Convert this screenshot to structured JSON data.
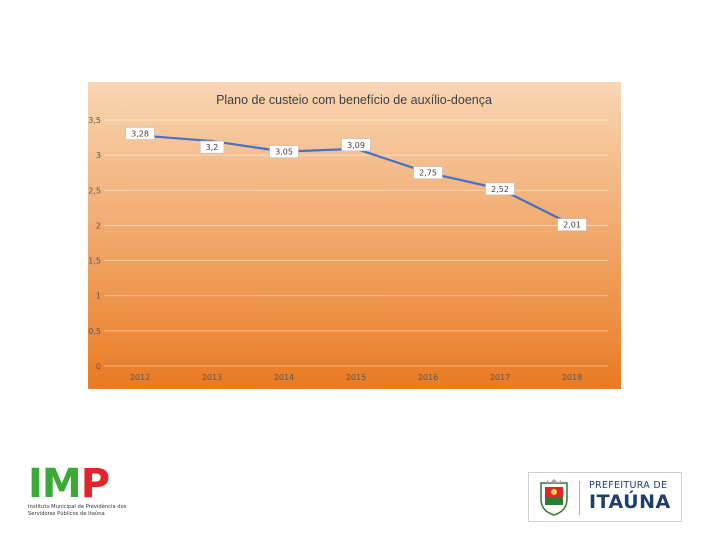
{
  "chart_data": {
    "type": "line",
    "title": "Plano de custeio com benefício de auxílio-doença",
    "categories": [
      "2012",
      "2013",
      "2014",
      "2015",
      "2016",
      "2017",
      "2018"
    ],
    "series": [
      {
        "values": [
          3.28,
          3.2,
          3.05,
          3.09,
          2.75,
          2.52,
          2.01
        ],
        "labels": [
          "3,28",
          "3,2",
          "3,05",
          "3,09",
          "2,75",
          "2,52",
          "2,01"
        ],
        "color": "#4472c4"
      }
    ],
    "ylim": [
      0,
      3.5
    ],
    "yticks": [
      0,
      0.5,
      1,
      1.5,
      2,
      2.5,
      3,
      3.5
    ],
    "ytick_labels": [
      "0",
      "0,5",
      "1",
      "1,5",
      "2",
      "2,5",
      "3",
      "3,5"
    ],
    "grid": true,
    "background_gradient": [
      "#f8d6b4",
      "#e97a22"
    ]
  },
  "logos": {
    "imp": {
      "letters": [
        "I",
        "M",
        "P"
      ],
      "subtitle": "Instituto Municipal de Previdência dos Servidores Públicos de Itaúna",
      "colors": [
        "#3aa935",
        "#e3242b"
      ]
    },
    "prefeitura": {
      "top": "PREFEITURA DE",
      "name": "ITAÚNA",
      "color": "#1e3f6e"
    }
  }
}
